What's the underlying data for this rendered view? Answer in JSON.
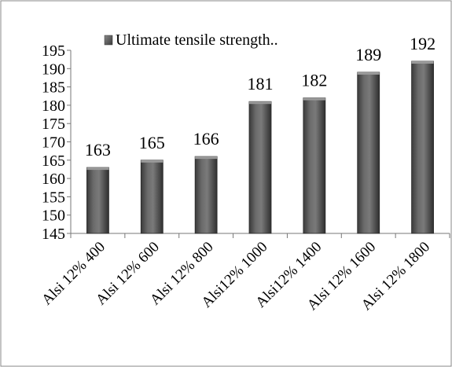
{
  "chart_data": {
    "type": "bar",
    "title": "",
    "xlabel": "",
    "ylabel": "",
    "categories": [
      "Alsi 12% 400",
      "Alsi 12% 600",
      "Alsi 12% 800",
      "Alsi12% 1000",
      "Alsi12% 1400",
      "Alsi 12% 1600",
      "Alsi 12% 1800"
    ],
    "series": [
      {
        "name": "Ultimate tensile strength..",
        "values": [
          163,
          165,
          166,
          181,
          182,
          189,
          192
        ],
        "color": "#555555"
      }
    ],
    "data_labels": [
      "163",
      "165",
      "166",
      "181",
      "182",
      "189",
      "192"
    ],
    "ylim": [
      145,
      195
    ],
    "yticks": [
      "145",
      "150",
      "155",
      "160",
      "165",
      "170",
      "175",
      "180",
      "185",
      "190",
      "195"
    ],
    "grid": false,
    "legend_position": "top"
  },
  "legend": {
    "label": "Ultimate tensile strength.."
  }
}
